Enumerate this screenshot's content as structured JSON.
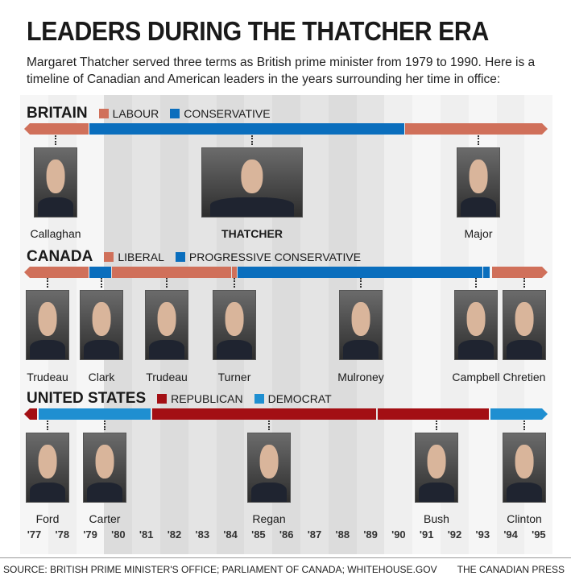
{
  "title": "LEADERS DURING THE THATCHER ERA",
  "subtitle": "Margaret Thatcher served three terms as British prime minister from 1979 to 1990. Here is a timeline of Canadian and American leaders in the years surrounding her time in office:",
  "years": [
    "'77",
    "'78",
    "'79",
    "'80",
    "'81",
    "'82",
    "'83",
    "'84",
    "'85",
    "'86",
    "'87",
    "'88",
    "'89",
    "'90",
    "'91",
    "'92",
    "'93",
    "'94",
    "'95"
  ],
  "colors": {
    "labour": "#d0705a",
    "conservative": "#0a6ebd",
    "liberal": "#d0705a",
    "progressive_conservative": "#0a6ebd",
    "republican": "#a30f14",
    "democrat": "#1f8fd1"
  },
  "britain": {
    "label": "BRITAIN",
    "legend": [
      "LABOUR",
      "CONSERVATIVE"
    ],
    "leaders": [
      {
        "name": "Callaghan",
        "bold": false
      },
      {
        "name": "THATCHER",
        "bold": true
      },
      {
        "name": "Major",
        "bold": false
      }
    ]
  },
  "canada": {
    "label": "CANADA",
    "legend": [
      "LIBERAL",
      "PROGRESSIVE CONSERVATIVE"
    ],
    "leaders": [
      {
        "name": "Trudeau"
      },
      {
        "name": "Clark"
      },
      {
        "name": "Trudeau"
      },
      {
        "name": "Turner"
      },
      {
        "name": "Mulroney"
      },
      {
        "name": "Campbell"
      },
      {
        "name": "Chretien"
      }
    ]
  },
  "us": {
    "label": "UNITED STATES",
    "legend": [
      "REPUBLICAN",
      "DEMOCRAT"
    ],
    "leaders": [
      {
        "name": "Ford"
      },
      {
        "name": "Carter"
      },
      {
        "name": "Regan"
      },
      {
        "name": "Bush"
      },
      {
        "name": "Clinton"
      }
    ]
  },
  "footer": {
    "source": "SOURCE: BRITISH PRIME MINISTER'S OFFICE; PARLIAMENT OF CANADA; WHITEHOUSE.GOV",
    "credit": "THE CANADIAN PRESS"
  }
}
